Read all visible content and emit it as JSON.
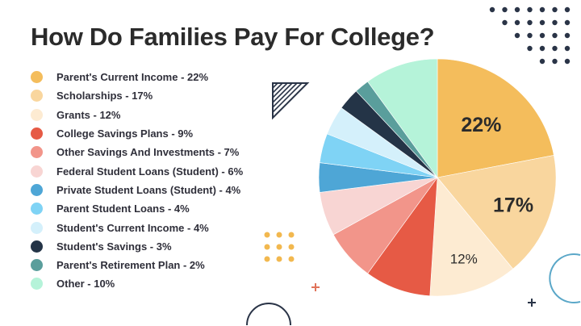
{
  "chart_data": {
    "type": "pie",
    "title": "How Do Families Pay For College?",
    "start": "12 o'clock, clockwise",
    "legend_placement": "left",
    "slices": [
      {
        "label": "Parent's Current Income - 22%",
        "value": 22,
        "color": "#f4bd5c",
        "data_label": "22%"
      },
      {
        "label": "Scholarships - 17%",
        "value": 17,
        "color": "#f9d69e",
        "data_label": "17%"
      },
      {
        "label": "Grants - 12%",
        "value": 12,
        "color": "#fdebd2",
        "data_label": "12%"
      },
      {
        "label": "College Savings Plans - 9%",
        "value": 9,
        "color": "#e65a45",
        "data_label": ""
      },
      {
        "label": "Other Savings And Investments - 7%",
        "value": 7,
        "color": "#f2958a",
        "data_label": ""
      },
      {
        "label": "Federal Student Loans (Student) - 6%",
        "value": 6,
        "color": "#f8d5d3",
        "data_label": ""
      },
      {
        "label": "Private Student Loans (Student) - 4%",
        "value": 4,
        "color": "#4ea6d6",
        "data_label": ""
      },
      {
        "label": "Parent Student Loans - 4%",
        "value": 4,
        "color": "#7fd3f5",
        "data_label": ""
      },
      {
        "label": "Student's Current Income - 4%",
        "value": 4,
        "color": "#d4f0fb",
        "data_label": ""
      },
      {
        "label": "Student's Savings - 3%",
        "value": 3,
        "color": "#243447",
        "data_label": ""
      },
      {
        "label": "Parent's Retirement Plan - 2%",
        "value": 2,
        "color": "#5a9e9c",
        "data_label": ""
      },
      {
        "label": "Other - 10%",
        "value": 10,
        "color": "#b5f3d9",
        "data_label": ""
      }
    ]
  }
}
